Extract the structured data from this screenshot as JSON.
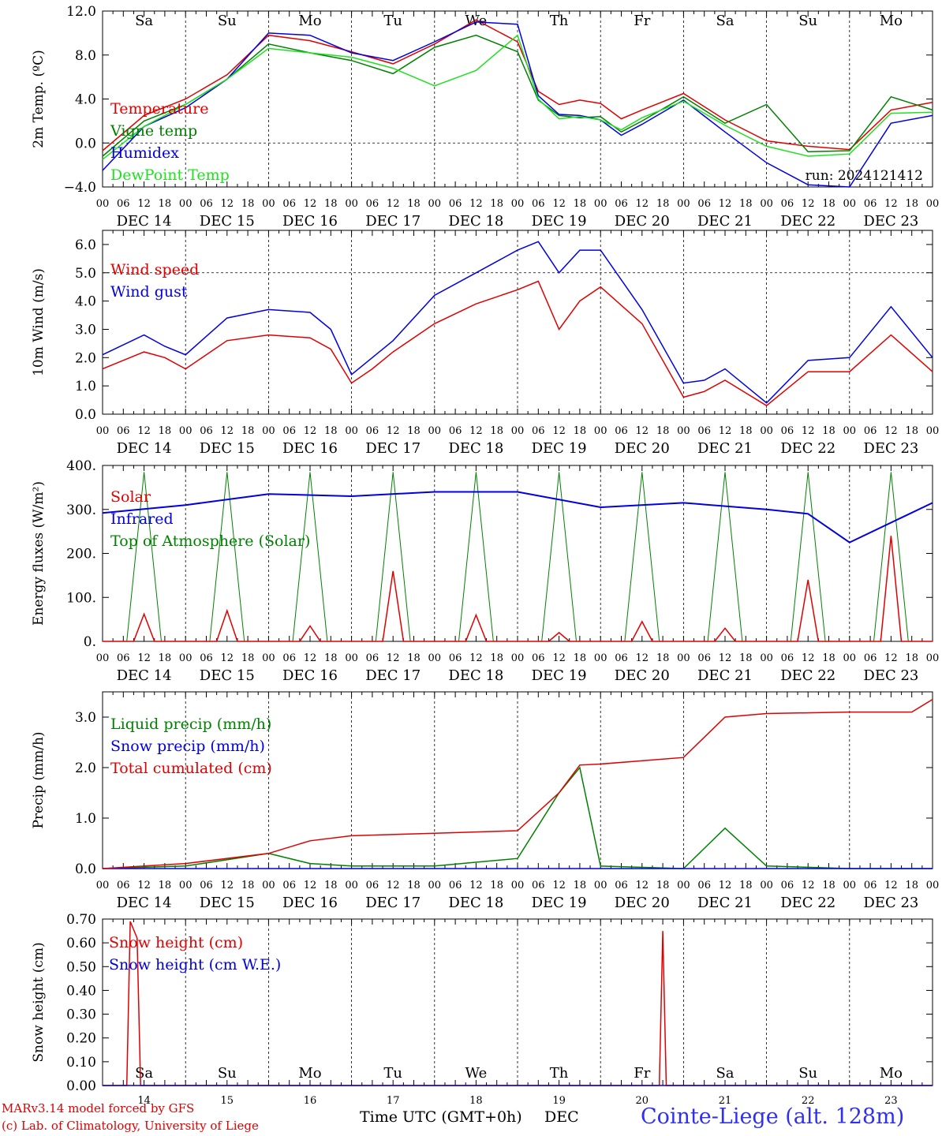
{
  "x_hour_labels": [
    "00",
    "06",
    "12",
    "18"
  ],
  "date_labels": [
    "DEC 14",
    "DEC 15",
    "DEC 16",
    "DEC 17",
    "DEC 18",
    "DEC 19",
    "DEC 20",
    "DEC 21",
    "DEC 22",
    "DEC 23"
  ],
  "weekday_labels": [
    {
      "text": "Sa",
      "color": "#e00000"
    },
    {
      "text": "Su",
      "color": "#e00000"
    },
    {
      "text": "Mo",
      "color": "#000000"
    },
    {
      "text": "Tu",
      "color": "#000000"
    },
    {
      "text": "We",
      "color": "#000000"
    },
    {
      "text": "Th",
      "color": "#000000"
    },
    {
      "text": "Fr",
      "color": "#000000"
    },
    {
      "text": "Sa",
      "color": "#e00000"
    },
    {
      "text": "Su",
      "color": "#e00000"
    },
    {
      "text": "Mo",
      "color": "#000000"
    }
  ],
  "bottom_day_numbers": [
    "14",
    "15",
    "16",
    "17",
    "18",
    "19",
    "20",
    "21",
    "22",
    "23"
  ],
  "run_label": "run: 2024121412",
  "footer": {
    "model_line": "MARv3.14 model forced by GFS",
    "credit_line": "(c) Lab. of Climatology, University of Liege",
    "axis_title": "Time UTC (GMT+0h)",
    "month": "DEC",
    "station": "Cointe-Liege (alt. 128m)"
  },
  "colors": {
    "red": "#e00000",
    "green": "#008000",
    "blue": "#0000e0",
    "lightgreen": "#20e020"
  },
  "chart_data": [
    {
      "type": "line",
      "ylabel": "2m Temp. (ºC)",
      "ylim": [
        -4,
        12
      ],
      "yticks": [
        "12.0",
        "8.0",
        "4.0",
        "0.0",
        "−4.0"
      ],
      "ytick_values": [
        12,
        8,
        4,
        0,
        -4
      ],
      "dashed_ref": [
        0
      ],
      "x_hours": [
        0,
        12,
        24,
        36,
        48,
        60,
        72,
        84,
        96,
        108,
        120,
        126,
        132,
        138,
        144,
        150,
        156,
        168,
        180,
        192,
        204,
        216,
        228,
        240
      ],
      "series": [
        {
          "name": "Temperature",
          "color": "#e00000",
          "values": [
            -0.7,
            2.5,
            4,
            6.2,
            9.8,
            9.3,
            8.3,
            7.2,
            9,
            11.2,
            9.2,
            4.7,
            3.5,
            3.9,
            3.6,
            2.2,
            3,
            4.5,
            2.1,
            0.2,
            -0.3,
            -0.6,
            3,
            3.7
          ]
        },
        {
          "name": "Vigne temp",
          "color": "#008000",
          "values": [
            -1.2,
            2,
            3.5,
            5.8,
            9,
            8.2,
            7.5,
            6.3,
            8.7,
            9.8,
            8.3,
            3.9,
            2.5,
            2.3,
            2.4,
            1,
            2,
            4.2,
            1.8,
            3.5,
            -0.8,
            -0.7,
            4.2,
            3
          ]
        },
        {
          "name": "Humidex",
          "color": "#0000e0",
          "values": [
            -2.5,
            1.5,
            3.2,
            5.8,
            10,
            9.8,
            8.2,
            7.5,
            9.2,
            11,
            10.8,
            4.3,
            2.6,
            2.5,
            2.1,
            0.7,
            1.7,
            3.9,
            1,
            -1.8,
            -3.8,
            -4,
            1.8,
            2.5
          ]
        },
        {
          "name": "DewPoint Temp",
          "color": "#20e020",
          "values": [
            -1.5,
            1.5,
            3.5,
            5.8,
            8.6,
            8.2,
            7.8,
            6.8,
            5.2,
            6.6,
            9.8,
            4,
            2.2,
            2.4,
            2.1,
            1.2,
            2.3,
            3.8,
            1.6,
            -0.3,
            -1.2,
            -1,
            2.7,
            2.8
          ]
        }
      ]
    },
    {
      "type": "line",
      "ylabel": "10m Wind (m/s)",
      "ylim": [
        0,
        6.5
      ],
      "yticks": [
        "6.0",
        "5.0",
        "4.0",
        "3.0",
        "2.0",
        "1.0",
        "0.0"
      ],
      "ytick_values": [
        6,
        5,
        4,
        3,
        2,
        1,
        0
      ],
      "dashed_ref": [
        5
      ],
      "x_hours": [
        0,
        12,
        18,
        24,
        36,
        48,
        60,
        66,
        72,
        78,
        84,
        96,
        108,
        120,
        126,
        132,
        138,
        144,
        156,
        168,
        174,
        180,
        192,
        204,
        216,
        228,
        240
      ],
      "series": [
        {
          "name": "Wind speed",
          "color": "#e00000",
          "values": [
            1.6,
            2.2,
            2,
            1.6,
            2.6,
            2.8,
            2.7,
            2.3,
            1.1,
            1.6,
            2.2,
            3.2,
            3.9,
            4.4,
            4.7,
            3,
            4,
            4.5,
            3.2,
            0.6,
            0.8,
            1.2,
            0.3,
            1.5,
            1.5,
            2.8,
            1.5
          ]
        },
        {
          "name": "Wind gust",
          "color": "#0000e0",
          "values": [
            2.1,
            2.8,
            2.4,
            2.1,
            3.4,
            3.7,
            3.6,
            3,
            1.4,
            2,
            2.6,
            4.2,
            5,
            5.8,
            6.1,
            5,
            5.8,
            5.8,
            3.7,
            1.1,
            1.2,
            1.6,
            0.4,
            1.9,
            2,
            3.8,
            2
          ]
        }
      ]
    },
    {
      "type": "line",
      "ylabel": "Energy fluxes (W/m²)",
      "ylim": [
        0,
        400
      ],
      "yticks": [
        "400.",
        "300.",
        "200.",
        "100.",
        "0."
      ],
      "ytick_values": [
        400,
        300,
        200,
        100,
        0
      ],
      "days": 10,
      "toa_peak": 385,
      "solar_peaks": [
        62,
        70,
        35,
        160,
        60,
        20,
        45,
        30,
        140,
        240
      ],
      "infrared": {
        "x_hours": [
          0,
          24,
          48,
          72,
          96,
          120,
          144,
          168,
          192,
          204,
          216,
          240
        ],
        "values": [
          292,
          310,
          335,
          330,
          340,
          340,
          305,
          315,
          300,
          290,
          225,
          315
        ]
      },
      "series": [
        {
          "name": "Solar",
          "color": "#e00000"
        },
        {
          "name": "Infrared",
          "color": "#0000e0"
        },
        {
          "name": "Top of Atmosphere (Solar)",
          "color": "#008000"
        }
      ]
    },
    {
      "type": "line",
      "ylabel": "Precip (mm/h)",
      "ylim": [
        0,
        3.5
      ],
      "yticks": [
        "3.0",
        "2.0",
        "1.0",
        "0.0"
      ],
      "ytick_values": [
        3,
        2,
        1,
        0
      ],
      "x_hours": [
        0,
        24,
        48,
        60,
        72,
        96,
        120,
        132,
        138,
        144,
        168,
        180,
        192,
        216,
        234,
        240
      ],
      "series": [
        {
          "name": "Liquid precip (mm/h)",
          "color": "#008000",
          "values": [
            0,
            0.05,
            0.3,
            0.1,
            0.05,
            0.05,
            0.2,
            1.5,
            2.0,
            0.05,
            0,
            0.8,
            0.05,
            0,
            0,
            0
          ]
        },
        {
          "name": "Snow precip (mm/h)",
          "color": "#0000e0",
          "values": [
            0,
            0,
            0,
            0,
            0,
            0,
            0,
            0,
            0,
            0,
            0,
            0,
            0,
            0,
            0,
            0
          ]
        },
        {
          "name": "Total cumulated (cm)",
          "color": "#e00000",
          "values": [
            0,
            0.1,
            0.3,
            0.55,
            0.65,
            0.7,
            0.75,
            1.5,
            2.05,
            2.07,
            2.2,
            3.0,
            3.07,
            3.1,
            3.1,
            3.35
          ]
        }
      ]
    },
    {
      "type": "line",
      "ylabel": "Snow height (cm)",
      "ylim": [
        0,
        0.7
      ],
      "yticks": [
        "0.70",
        "0.60",
        "0.50",
        "0.40",
        "0.30",
        "0.20",
        "0.10",
        "0.00"
      ],
      "ytick_values": [
        0.7,
        0.6,
        0.5,
        0.4,
        0.3,
        0.2,
        0.1,
        0
      ],
      "x_hours": [
        0,
        7,
        8,
        10,
        11,
        161,
        162,
        163,
        240
      ],
      "series": [
        {
          "name": "Snow height (cm)",
          "color": "#e00000",
          "values": [
            0,
            0,
            0.69,
            0.62,
            0,
            0,
            0.65,
            0,
            0
          ]
        },
        {
          "name": "Snow height (cm W.E.)",
          "color": "#0000e0",
          "values": [
            0,
            0,
            0,
            0,
            0,
            0,
            0,
            0,
            0
          ]
        }
      ]
    }
  ]
}
